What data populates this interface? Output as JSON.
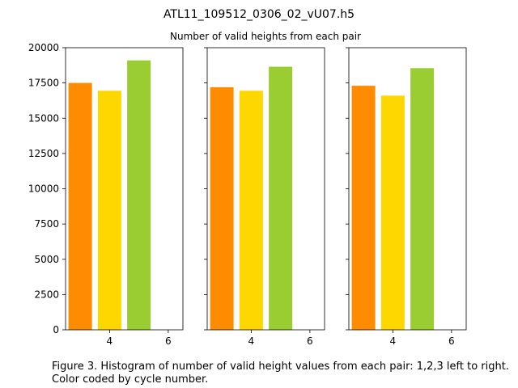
{
  "figure_title": "ATL11_109512_0306_02_vU07.h5",
  "subtitle": "Number of valid heights from each pair",
  "caption": "Figure 3. Histogram of number of valid height values from each pair: 1,2,3 left to right. Color coded by cycle number.",
  "chart_data": [
    {
      "type": "bar",
      "panel": "pair 1",
      "x": [
        3,
        4,
        5
      ],
      "values": [
        17500,
        16950,
        19100
      ],
      "colors": [
        "#ff8c00",
        "#ffd700",
        "#9acd32"
      ],
      "xlim": [
        2.5,
        6.5
      ],
      "ylim": [
        0,
        20000
      ],
      "xticks": [
        "4",
        "6"
      ],
      "yticks": [
        "0",
        "2500",
        "5000",
        "7500",
        "10000",
        "12500",
        "15000",
        "17500",
        "20000"
      ]
    },
    {
      "type": "bar",
      "panel": "pair 2",
      "x": [
        3,
        4,
        5
      ],
      "values": [
        17200,
        16950,
        18650
      ],
      "colors": [
        "#ff8c00",
        "#ffd700",
        "#9acd32"
      ],
      "xlim": [
        2.5,
        6.5
      ],
      "ylim": [
        0,
        20000
      ],
      "xticks": [
        "4",
        "6"
      ],
      "yticks": []
    },
    {
      "type": "bar",
      "panel": "pair 3",
      "x": [
        3,
        4,
        5
      ],
      "values": [
        17300,
        16600,
        18550
      ],
      "colors": [
        "#ff8c00",
        "#ffd700",
        "#9acd32"
      ],
      "xlim": [
        2.5,
        6.5
      ],
      "ylim": [
        0,
        20000
      ],
      "xticks": [
        "4",
        "6"
      ],
      "yticks": []
    }
  ]
}
